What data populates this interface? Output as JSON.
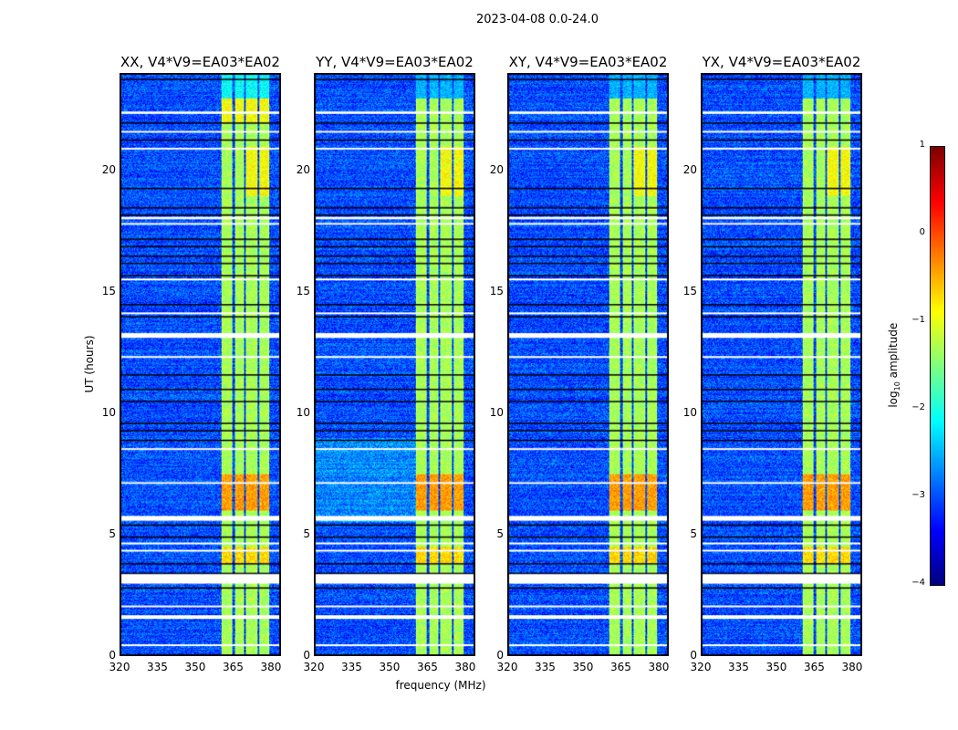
{
  "chart_data": {
    "type": "heatmap",
    "title": "2023-04-08 0.0-24.0",
    "xlabel": "frequency (MHz)",
    "ylabel": "UT (hours)",
    "xlim": [
      320,
      384
    ],
    "ylim": [
      0,
      24
    ],
    "xticks": [
      "320",
      "335",
      "350",
      "365",
      "380"
    ],
    "xtick_values": [
      320,
      335,
      350,
      365,
      380
    ],
    "yticks": [
      "0",
      "5",
      "10",
      "15",
      "20"
    ],
    "ytick_values": [
      0,
      5,
      10,
      15,
      20
    ],
    "panels": [
      {
        "title": "XX, V4*V9=EA03*EA02"
      },
      {
        "title": "YY, V4*V9=EA03*EA02"
      },
      {
        "title": "XY, V4*V9=EA03*EA02"
      },
      {
        "title": "YX, V4*V9=EA03*EA02"
      }
    ],
    "bright_bands_mhz": [
      [
        360.4,
        364.7
      ],
      [
        365.8,
        369.4
      ],
      [
        370.1,
        374.8
      ],
      [
        375.6,
        379.6
      ]
    ],
    "background_log_amp": -3,
    "band_log_amp": -1,
    "strong_interval_ut": [
      6,
      7.5
    ],
    "flagged_rows_ut": [
      [
        22.35,
        22.45
      ],
      [
        21.6,
        21.65
      ],
      [
        20.9,
        20.95
      ],
      [
        18.0,
        18.1
      ],
      [
        17.8,
        17.85
      ],
      [
        15.5,
        15.55
      ],
      [
        14.1,
        14.15
      ],
      [
        13.1,
        13.3
      ],
      [
        12.3,
        12.35
      ],
      [
        8.5,
        8.55
      ],
      [
        7.1,
        7.15
      ],
      [
        5.55,
        5.75
      ],
      [
        4.6,
        4.65
      ],
      [
        4.3,
        4.35
      ],
      [
        3.2,
        3.0
      ],
      [
        2.95,
        3.35
      ],
      [
        2.0,
        2.05
      ],
      [
        1.5,
        1.65
      ],
      [
        0.4,
        0.45
      ]
    ],
    "black_rows_ut": [
      23.8,
      22.0,
      21.3,
      19.3,
      18.5,
      18.2,
      17.2,
      16.9,
      16.5,
      16.2,
      15.7,
      14.5,
      14.0,
      11.6,
      11.0,
      10.5,
      9.6,
      9.3,
      8.9,
      5.4,
      4.9,
      3.8,
      3.4,
      2.8
    ],
    "colorbar": {
      "label": "log10 amplitude",
      "label_base": "log",
      "label_sub": "10",
      "label_rest": " amplitude",
      "range": [
        -4,
        1
      ],
      "ticks": [
        "1",
        "0",
        "−1",
        "−2",
        "−3",
        "−4"
      ],
      "tick_values": [
        1,
        0,
        -1,
        -2,
        -3,
        -4
      ],
      "colormap": "jet"
    }
  }
}
